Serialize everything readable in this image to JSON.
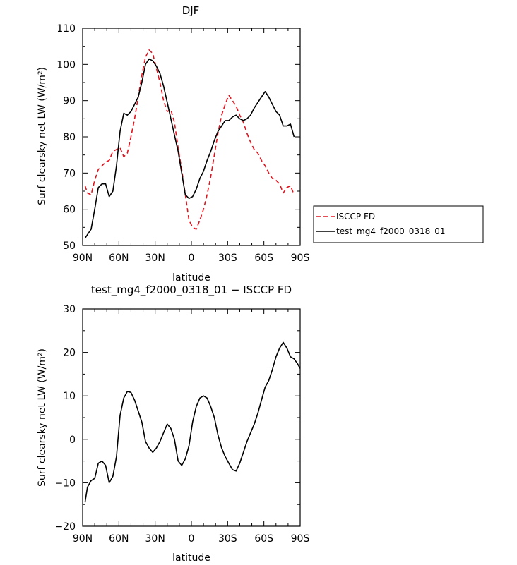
{
  "chart_data": [
    {
      "type": "line",
      "title": "DJF",
      "xlabel": "latitude",
      "ylabel": "Surf clearsky net LW (W/m²)",
      "xlim": [
        -90,
        90
      ],
      "ylim": [
        50,
        110
      ],
      "x_ticks": [
        -90,
        -60,
        -30,
        0,
        30,
        60,
        90
      ],
      "x_tick_labels": [
        "90N",
        "60N",
        "30N",
        "0",
        "30S",
        "60S",
        "90S"
      ],
      "y_ticks": [
        50,
        60,
        70,
        80,
        90,
        100,
        110
      ],
      "y_tick_labels": [
        "50",
        "60",
        "70",
        "80",
        "90",
        "100",
        "110"
      ],
      "legend": {
        "placement": "right"
      },
      "series": [
        {
          "name": "ISCCP FD",
          "color": "#e0141e",
          "dash": "dashed",
          "points": [
            [
              -88,
              66.5
            ],
            [
              -86,
              64.5
            ],
            [
              -83,
              64
            ],
            [
              -80,
              68
            ],
            [
              -77,
              71
            ],
            [
              -74,
              72
            ],
            [
              -71,
              73
            ],
            [
              -68,
              73.5
            ],
            [
              -65,
              76
            ],
            [
              -62,
              76.5
            ],
            [
              -59,
              77
            ],
            [
              -56,
              74.5
            ],
            [
              -53,
              75.5
            ],
            [
              -50,
              80
            ],
            [
              -47,
              85
            ],
            [
              -44,
              91
            ],
            [
              -41,
              97
            ],
            [
              -38,
              102
            ],
            [
              -35,
              104
            ],
            [
              -32,
              103
            ],
            [
              -29,
              99
            ],
            [
              -26,
              95
            ],
            [
              -23,
              90
            ],
            [
              -20,
              87
            ],
            [
              -17,
              87.5
            ],
            [
              -14,
              84
            ],
            [
              -11,
              77
            ],
            [
              -8,
              71
            ],
            [
              -5,
              64
            ],
            [
              -2,
              57
            ],
            [
              1,
              55
            ],
            [
              4,
              54.5
            ],
            [
              7,
              57
            ],
            [
              10,
              60
            ],
            [
              13,
              64
            ],
            [
              16,
              69
            ],
            [
              19,
              75
            ],
            [
              22,
              81
            ],
            [
              25,
              86
            ],
            [
              28,
              89
            ],
            [
              31,
              91.5
            ],
            [
              34,
              90
            ],
            [
              37,
              88.5
            ],
            [
              40,
              86
            ],
            [
              43,
              84
            ],
            [
              46,
              81
            ],
            [
              49,
              78.5
            ],
            [
              52,
              76.5
            ],
            [
              55,
              75.5
            ],
            [
              58,
              73.5
            ],
            [
              61,
              72
            ],
            [
              64,
              70
            ],
            [
              67,
              68.5
            ],
            [
              70,
              68
            ],
            [
              73,
              67
            ],
            [
              76,
              64.5
            ],
            [
              79,
              66
            ],
            [
              82,
              66.5
            ],
            [
              85,
              64
            ]
          ]
        },
        {
          "name": "test_mg4_f2000_0318_01",
          "color": "#000000",
          "dash": "solid",
          "points": [
            [
              -88,
              52
            ],
            [
              -86,
              53
            ],
            [
              -83,
              54.5
            ],
            [
              -80,
              60
            ],
            [
              -77,
              66
            ],
            [
              -74,
              67
            ],
            [
              -71,
              67
            ],
            [
              -68,
              63.5
            ],
            [
              -65,
              65
            ],
            [
              -62,
              72
            ],
            [
              -59,
              81.5
            ],
            [
              -56,
              86.5
            ],
            [
              -53,
              86
            ],
            [
              -50,
              87
            ],
            [
              -47,
              89
            ],
            [
              -44,
              91
            ],
            [
              -41,
              95
            ],
            [
              -38,
              100
            ],
            [
              -35,
              101.5
            ],
            [
              -32,
              101
            ],
            [
              -29,
              99.5
            ],
            [
              -26,
              97.5
            ],
            [
              -23,
              94
            ],
            [
              -20,
              89.5
            ],
            [
              -17,
              85
            ],
            [
              -14,
              80.5
            ],
            [
              -11,
              76
            ],
            [
              -8,
              70
            ],
            [
              -5,
              64
            ],
            [
              -2,
              63
            ],
            [
              1,
              63.5
            ],
            [
              4,
              65.5
            ],
            [
              7,
              68.5
            ],
            [
              10,
              70.5
            ],
            [
              13,
              73.5
            ],
            [
              16,
              76
            ],
            [
              19,
              79
            ],
            [
              22,
              81.5
            ],
            [
              25,
              83
            ],
            [
              28,
              84.5
            ],
            [
              31,
              84.5
            ],
            [
              34,
              85.5
            ],
            [
              37,
              86
            ],
            [
              40,
              85
            ],
            [
              43,
              84.5
            ],
            [
              46,
              85
            ],
            [
              49,
              86
            ],
            [
              52,
              88
            ],
            [
              55,
              89.5
            ],
            [
              58,
              91
            ],
            [
              61,
              92.5
            ],
            [
              64,
              91
            ],
            [
              67,
              89
            ],
            [
              70,
              87
            ],
            [
              73,
              86
            ],
            [
              76,
              83
            ],
            [
              79,
              83
            ],
            [
              82,
              83.5
            ],
            [
              85,
              80
            ]
          ]
        }
      ]
    },
    {
      "type": "line",
      "title": "test_mg4_f2000_0318_01 − ISCCP FD",
      "xlabel": "latitude",
      "ylabel": "Surf clearsky net LW (W/m²)",
      "xlim": [
        -90,
        90
      ],
      "ylim": [
        -20,
        30
      ],
      "x_ticks": [
        -90,
        -60,
        -30,
        0,
        30,
        60,
        90
      ],
      "x_tick_labels": [
        "90N",
        "60N",
        "30N",
        "0",
        "30S",
        "60S",
        "90S"
      ],
      "y_ticks": [
        -20,
        -10,
        0,
        10,
        20,
        30
      ],
      "y_tick_labels": [
        "−20",
        "−10",
        "0",
        "10",
        "20",
        "30"
      ],
      "series": [
        {
          "color": "#000000",
          "dash": "solid",
          "points": [
            [
              -88,
              -14.5
            ],
            [
              -86,
              -11
            ],
            [
              -83,
              -9.5
            ],
            [
              -80,
              -9
            ],
            [
              -77,
              -5.5
            ],
            [
              -74,
              -5
            ],
            [
              -71,
              -6
            ],
            [
              -68,
              -10
            ],
            [
              -65,
              -8.5
            ],
            [
              -62,
              -4
            ],
            [
              -59,
              5.5
            ],
            [
              -56,
              9.5
            ],
            [
              -53,
              11
            ],
            [
              -50,
              10.8
            ],
            [
              -47,
              9
            ],
            [
              -44,
              6.5
            ],
            [
              -41,
              4
            ],
            [
              -38,
              -0.5
            ],
            [
              -35,
              -2
            ],
            [
              -32,
              -3
            ],
            [
              -29,
              -2
            ],
            [
              -26,
              -0.5
            ],
            [
              -23,
              1.5
            ],
            [
              -20,
              3.5
            ],
            [
              -17,
              2.5
            ],
            [
              -14,
              0
            ],
            [
              -11,
              -5
            ],
            [
              -8,
              -6
            ],
            [
              -5,
              -4.5
            ],
            [
              -2,
              -1.5
            ],
            [
              1,
              4
            ],
            [
              4,
              7.5
            ],
            [
              7,
              9.5
            ],
            [
              10,
              10
            ],
            [
              13,
              9.5
            ],
            [
              16,
              7.5
            ],
            [
              19,
              5
            ],
            [
              22,
              1
            ],
            [
              25,
              -2
            ],
            [
              28,
              -4
            ],
            [
              31,
              -5.5
            ],
            [
              34,
              -7
            ],
            [
              37,
              -7.3
            ],
            [
              40,
              -5.5
            ],
            [
              43,
              -3
            ],
            [
              46,
              -0.5
            ],
            [
              49,
              1.5
            ],
            [
              52,
              3.5
            ],
            [
              55,
              6
            ],
            [
              58,
              9
            ],
            [
              61,
              12
            ],
            [
              64,
              13.5
            ],
            [
              67,
              16
            ],
            [
              70,
              19
            ],
            [
              73,
              21
            ],
            [
              76,
              22.3
            ],
            [
              79,
              21
            ],
            [
              82,
              19
            ],
            [
              85,
              18.5
            ],
            [
              88,
              17.3
            ],
            [
              90,
              16.3
            ]
          ]
        }
      ]
    }
  ]
}
